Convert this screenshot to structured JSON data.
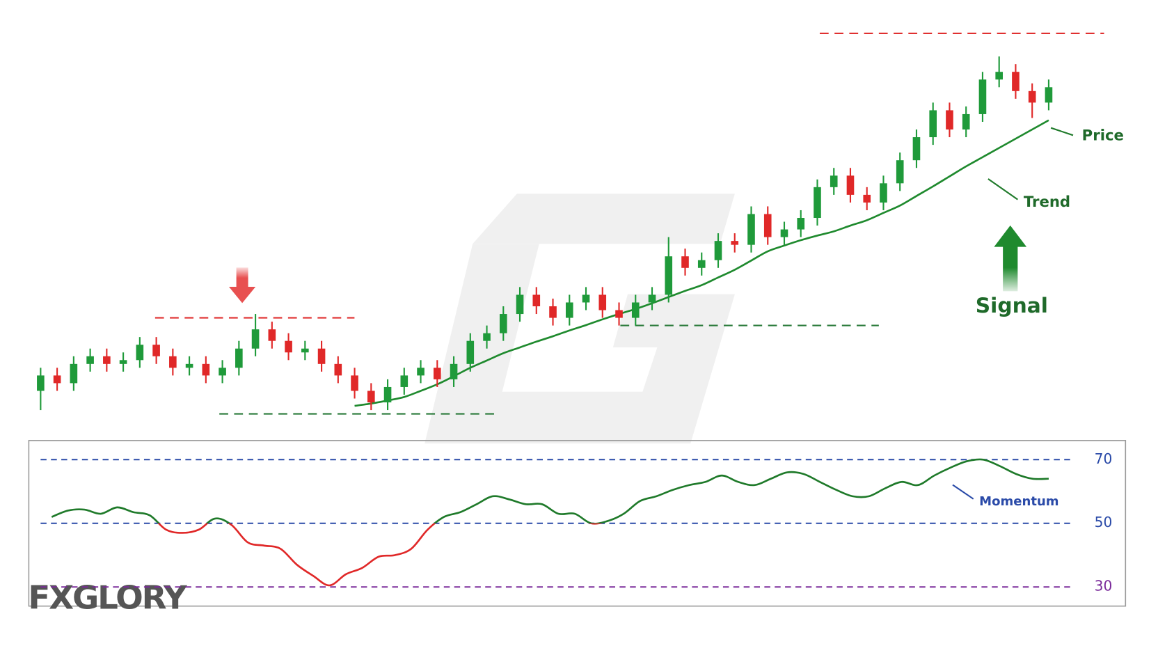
{
  "logo": "FXGLORY",
  "chart_data": [
    {
      "type": "candlestick",
      "open": [
        6,
        10,
        8,
        13,
        15,
        13,
        14,
        18,
        15,
        12,
        13,
        10,
        12,
        17,
        22,
        19,
        16,
        17,
        13,
        10,
        6,
        3,
        7,
        10,
        12,
        9,
        13,
        19,
        21,
        26,
        31,
        28,
        25,
        29,
        31,
        27,
        25,
        29,
        31,
        41,
        38,
        40,
        45,
        44,
        52,
        46,
        48,
        51,
        59,
        62,
        57,
        55,
        60,
        66,
        72,
        79,
        74,
        78,
        87,
        89,
        84,
        81
      ],
      "high": [
        12,
        12,
        15,
        17,
        17,
        16,
        20,
        20,
        17,
        15,
        15,
        14,
        19,
        26,
        24,
        21,
        19,
        19,
        15,
        12,
        8,
        9,
        12,
        14,
        14,
        15,
        21,
        23,
        28,
        33,
        33,
        30,
        31,
        33,
        33,
        29,
        31,
        33,
        46,
        43,
        42,
        47,
        47,
        54,
        54,
        50,
        53,
        61,
        64,
        64,
        59,
        62,
        68,
        74,
        81,
        81,
        80,
        89,
        93,
        91,
        86,
        87
      ],
      "low": [
        1,
        6,
        6,
        11,
        11,
        11,
        12,
        13,
        10,
        10,
        8,
        8,
        10,
        15,
        17,
        14,
        14,
        11,
        8,
        4,
        1,
        1,
        5,
        8,
        7,
        7,
        11,
        17,
        19,
        24,
        26,
        23,
        23,
        27,
        25,
        23,
        23,
        27,
        29,
        36,
        36,
        38,
        42,
        42,
        44,
        44,
        46,
        49,
        57,
        55,
        53,
        53,
        58,
        64,
        70,
        72,
        72,
        76,
        85,
        82,
        77,
        79
      ],
      "close": [
        10,
        8,
        13,
        15,
        13,
        14,
        18,
        15,
        12,
        13,
        10,
        12,
        17,
        22,
        19,
        16,
        17,
        13,
        10,
        6,
        3,
        7,
        10,
        12,
        9,
        13,
        19,
        21,
        26,
        31,
        28,
        25,
        29,
        31,
        27,
        25,
        29,
        31,
        41,
        38,
        40,
        45,
        44,
        52,
        46,
        48,
        51,
        59,
        62,
        57,
        55,
        60,
        66,
        72,
        79,
        74,
        78,
        87,
        89,
        84,
        81,
        85
      ],
      "up_color": "#1f9a3a",
      "down_color": "#e02828",
      "ylim": [
        0,
        100
      ],
      "trend": {
        "color": "#1f8a2e",
        "values": [
          null,
          null,
          null,
          null,
          null,
          null,
          null,
          null,
          null,
          null,
          null,
          null,
          null,
          null,
          null,
          null,
          null,
          null,
          null,
          2.1,
          2.7,
          3.5,
          4.4,
          6,
          7.7,
          9.8,
          12,
          13.9,
          15.8,
          17.3,
          18.8,
          20.2,
          21.7,
          23.1,
          24.6,
          26,
          27.3,
          28.8,
          30.4,
          32,
          33.5,
          35.5,
          37.5,
          39.9,
          42.3,
          43.8,
          45.2,
          46.4,
          47.5,
          49,
          50.4,
          52.3,
          54.2,
          56.7,
          59.2,
          61.8,
          64.4,
          66.8,
          69.2,
          71.6,
          74,
          76.4
        ]
      },
      "levels": [
        {
          "value": 25,
          "color": "#e03030"
        },
        {
          "value": 0,
          "color": "#2a7a3a"
        },
        {
          "value": 23,
          "color": "#2a7a3a"
        },
        {
          "value": 99,
          "color": "#e03030"
        }
      ],
      "annotations": {
        "price": "Price",
        "trend": "Trend",
        "signal": "Signal"
      }
    },
    {
      "type": "line",
      "values": [
        52,
        54,
        54.3,
        53,
        55,
        53.5,
        52.5,
        48,
        47,
        48,
        51.5,
        49.5,
        44,
        43,
        42,
        37,
        33.5,
        30.5,
        34,
        36,
        39.5,
        40,
        42,
        48,
        52,
        53.5,
        56,
        58.5,
        57.5,
        56,
        56,
        53,
        53,
        50,
        50.7,
        53,
        57,
        58.5,
        60.5,
        62,
        63,
        65,
        63,
        62,
        64,
        66,
        65.5,
        63,
        60.5,
        58.5,
        58.5,
        61,
        63,
        62,
        65,
        67.5,
        69.5,
        70,
        68,
        65.5,
        64,
        64
      ],
      "color": "#1f7a2a",
      "below_color": "#e02828",
      "color_split": 50,
      "ylim": [
        24,
        76
      ],
      "yticks": [
        30,
        50,
        70
      ],
      "tick_colors": [
        "#7a2a9a",
        "#2a4aa8",
        "#2a4aa8"
      ],
      "label": "Momentum"
    }
  ]
}
